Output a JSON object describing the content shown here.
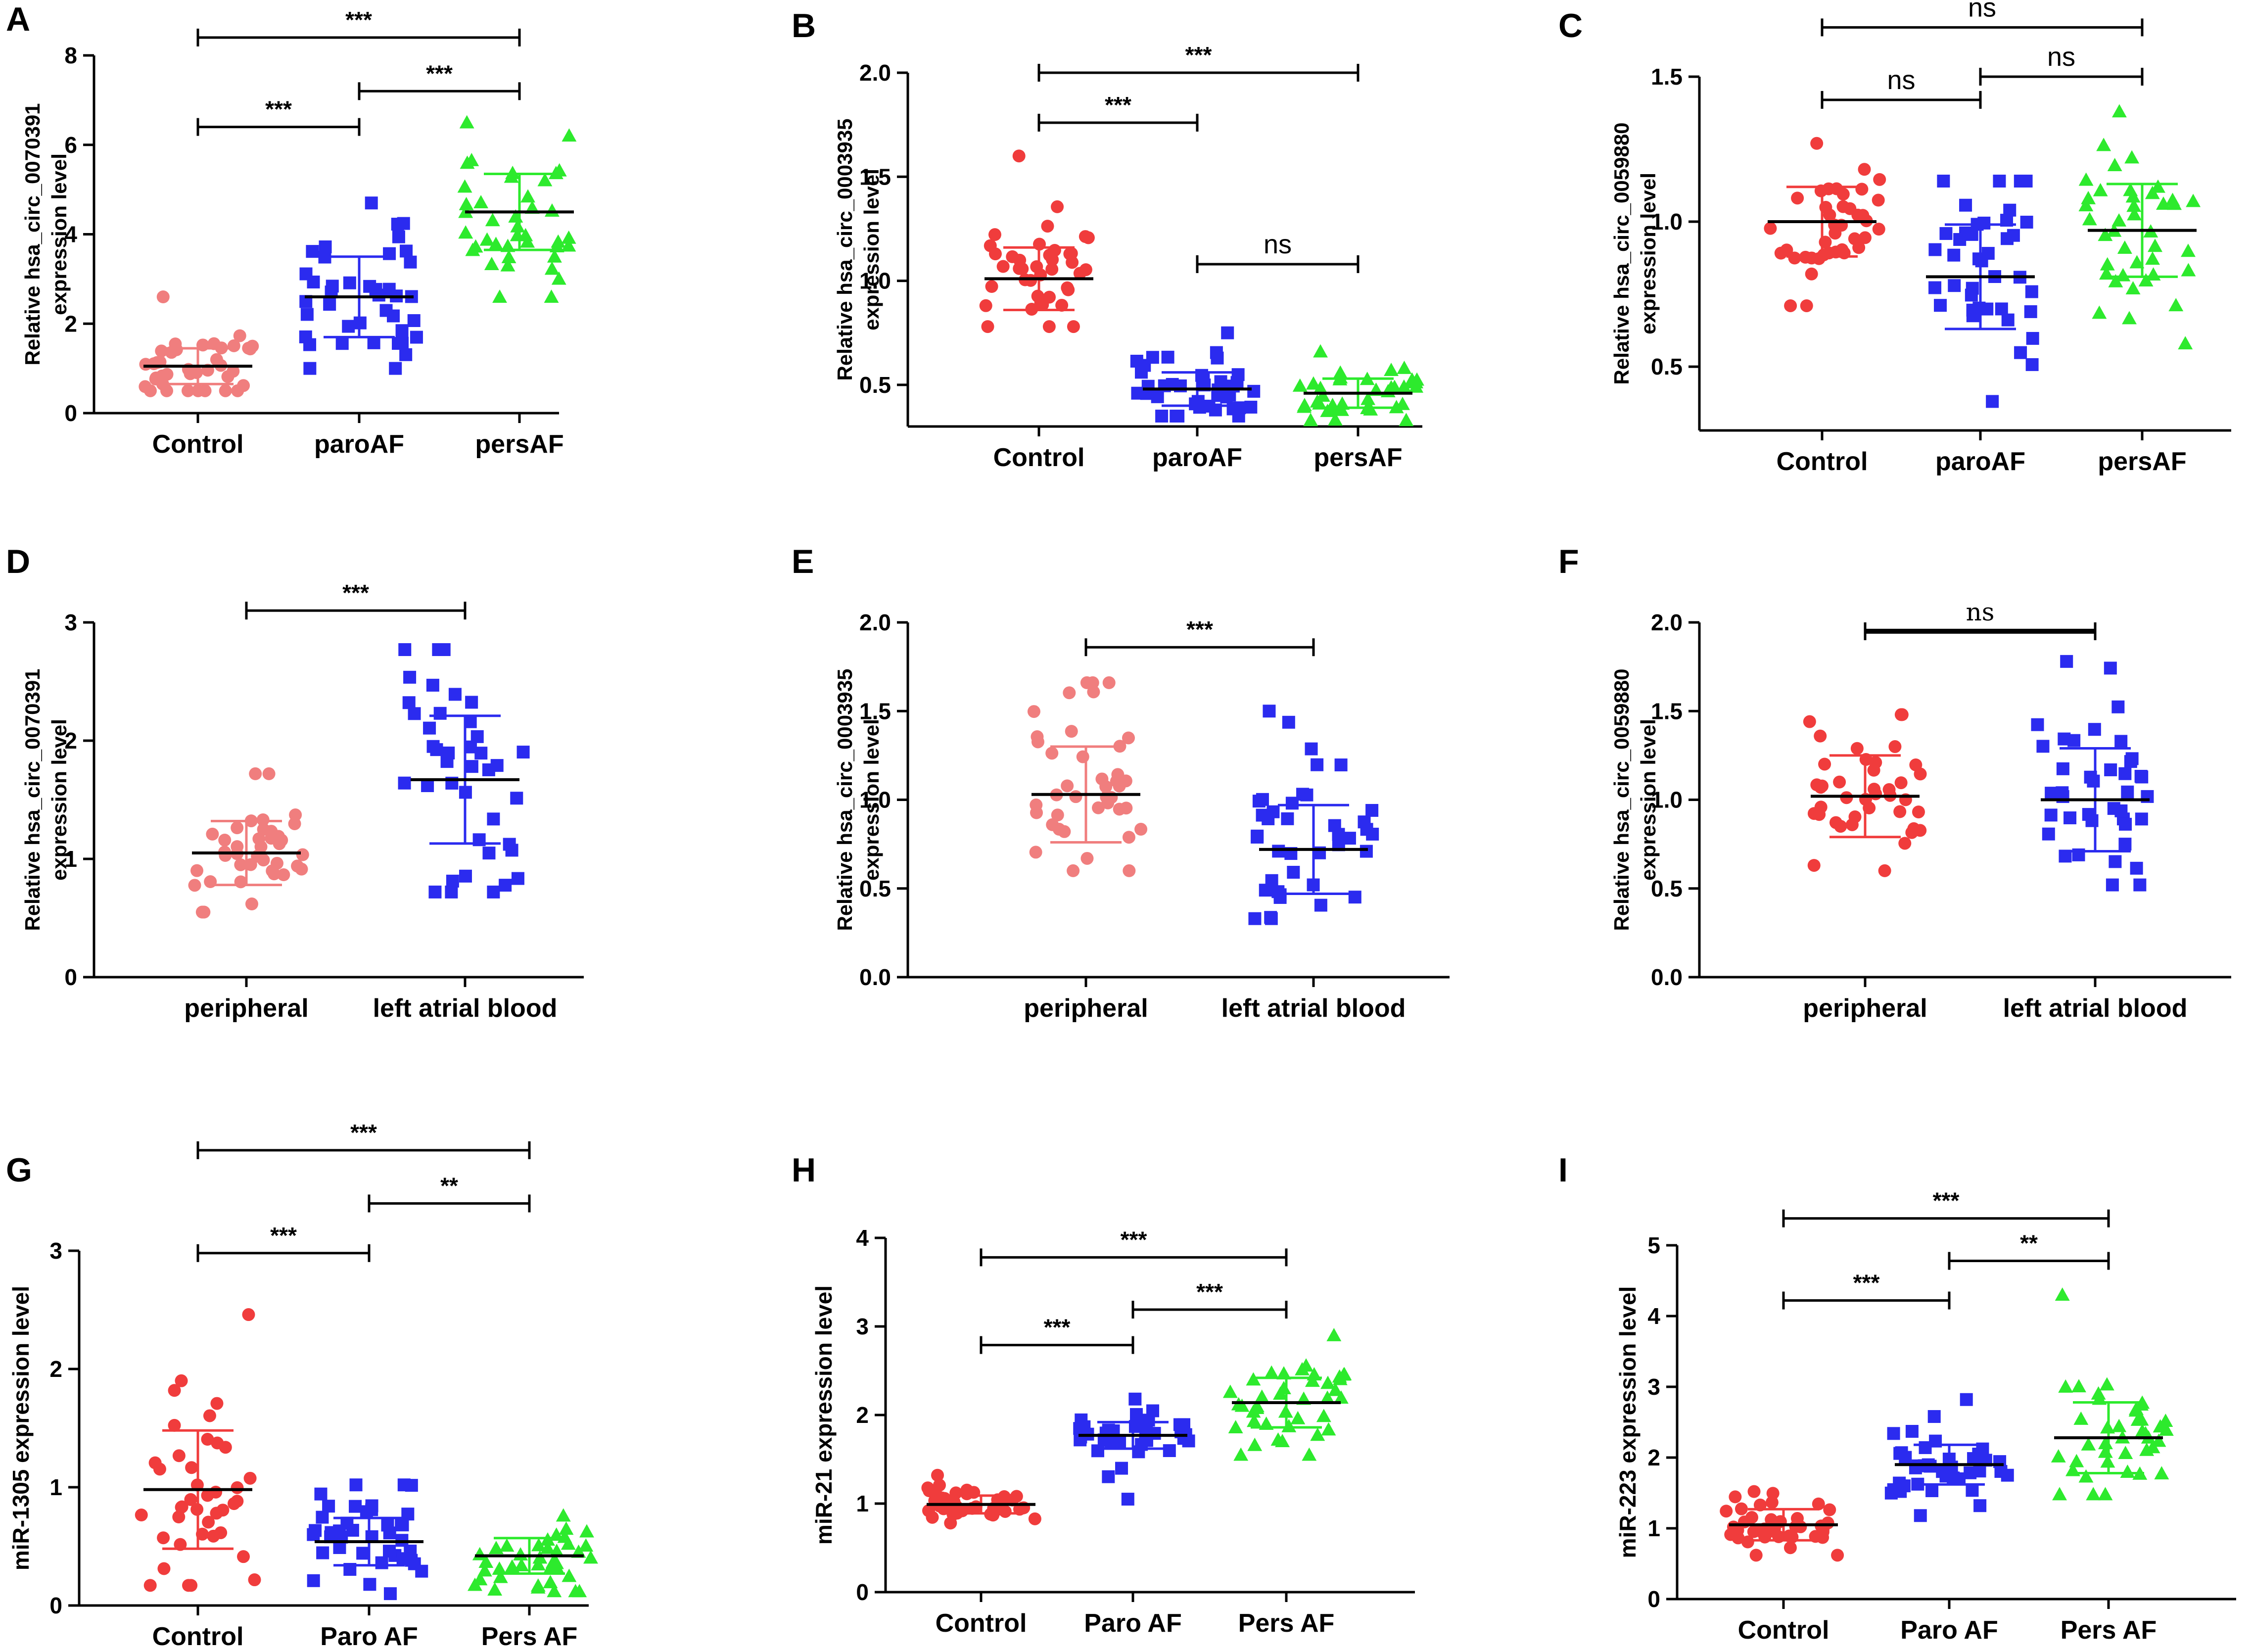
{
  "colors": {
    "red": "#f03c3c",
    "salmon": "#f07e7e",
    "blue": "#2b2bef",
    "green": "#2dea2d",
    "axis": "#000000",
    "mean": "#000000"
  },
  "chart_data": [
    {
      "panel": "A",
      "type": "scatter",
      "ylabel": [
        "Relative hsa_circ_0070391",
        "expression level"
      ],
      "ylim": [
        0,
        8
      ],
      "yticks": [
        "0",
        "2",
        "4",
        "6",
        "8"
      ],
      "categories": [
        "Control",
        "paroAF",
        "persAF"
      ],
      "series": [
        {
          "name": "Control",
          "color": "salmon",
          "shape": "circle",
          "mean": 1.05,
          "sd": 0.4,
          "n": 40,
          "range": [
            0.5,
            2.6
          ]
        },
        {
          "name": "paroAF",
          "color": "blue",
          "shape": "square",
          "mean": 2.6,
          "sd": 0.9,
          "n": 40,
          "range": [
            1.0,
            4.7
          ]
        },
        {
          "name": "persAF",
          "color": "green",
          "shape": "triangle",
          "mean": 4.5,
          "sd": 0.85,
          "n": 40,
          "range": [
            2.6,
            6.5
          ]
        }
      ],
      "comparisons": [
        {
          "from": 0,
          "to": 1,
          "y": 6.4,
          "label": "***"
        },
        {
          "from": 1,
          "to": 2,
          "y": 7.2,
          "label": "***"
        },
        {
          "from": 0,
          "to": 2,
          "y": 8.4,
          "label": "***"
        }
      ]
    },
    {
      "panel": "B",
      "type": "scatter",
      "ylabel": [
        "Relative hsa_circ_0003935",
        "expression level"
      ],
      "ylim": [
        0.3,
        2.0
      ],
      "yticks": [
        "0.5",
        "1.0",
        "1.5",
        "2.0"
      ],
      "categories": [
        "Control",
        "paroAF",
        "persAF"
      ],
      "series": [
        {
          "name": "Control",
          "color": "red",
          "shape": "circle",
          "mean": 1.01,
          "sd": 0.15,
          "n": 40,
          "range": [
            0.78,
            1.6
          ]
        },
        {
          "name": "paroAF",
          "color": "blue",
          "shape": "square",
          "mean": 0.48,
          "sd": 0.08,
          "n": 40,
          "range": [
            0.35,
            0.75
          ]
        },
        {
          "name": "persAF",
          "color": "green",
          "shape": "triangle",
          "mean": 0.46,
          "sd": 0.07,
          "n": 40,
          "range": [
            0.33,
            0.66
          ]
        }
      ],
      "comparisons": [
        {
          "from": 1,
          "to": 2,
          "y": 1.08,
          "label": "ns"
        },
        {
          "from": 0,
          "to": 1,
          "y": 1.76,
          "label": "***"
        },
        {
          "from": 0,
          "to": 2,
          "y": 2.0,
          "label": "***"
        }
      ]
    },
    {
      "panel": "C",
      "type": "scatter",
      "ylabel": [
        "Relative hsa_circ_0059880",
        "expression level"
      ],
      "ylim": [
        0.28,
        1.5
      ],
      "yticks": [
        "0.5",
        "1.0",
        "1.5"
      ],
      "categories": [
        "Control",
        "paroAF",
        "persAF"
      ],
      "series": [
        {
          "name": "Control",
          "color": "red",
          "shape": "circle",
          "mean": 1.0,
          "sd": 0.12,
          "n": 40,
          "range": [
            0.71,
            1.27
          ]
        },
        {
          "name": "paroAF",
          "color": "blue",
          "shape": "square",
          "mean": 0.81,
          "sd": 0.18,
          "n": 40,
          "range": [
            0.38,
            1.14
          ]
        },
        {
          "name": "persAF",
          "color": "green",
          "shape": "triangle",
          "mean": 0.97,
          "sd": 0.16,
          "n": 40,
          "range": [
            0.58,
            1.38
          ]
        }
      ],
      "comparisons": [
        {
          "from": 0,
          "to": 1,
          "y": 1.42,
          "label": "ns"
        },
        {
          "from": 1,
          "to": 2,
          "y": 1.5,
          "label": "ns"
        },
        {
          "from": 0,
          "to": 2,
          "y": 1.67,
          "label": "ns"
        }
      ]
    },
    {
      "panel": "D",
      "type": "scatter",
      "ylabel": [
        "Relative hsa_circ_0070391",
        "expression level"
      ],
      "ylim": [
        0,
        3
      ],
      "yticks": [
        "0",
        "1",
        "2",
        "3"
      ],
      "categories": [
        "peripheral",
        "left atrial blood"
      ],
      "series": [
        {
          "name": "peripheral",
          "color": "salmon",
          "shape": "circle",
          "mean": 1.05,
          "sd": 0.27,
          "n": 40,
          "range": [
            0.55,
            1.72
          ]
        },
        {
          "name": "left atrial blood",
          "color": "blue",
          "shape": "square",
          "mean": 1.67,
          "sd": 0.54,
          "n": 40,
          "range": [
            0.72,
            2.77
          ]
        }
      ],
      "comparisons": [
        {
          "from": 0,
          "to": 1,
          "y": 3.1,
          "label": "***"
        }
      ]
    },
    {
      "panel": "E",
      "type": "scatter",
      "ylabel": [
        "Relative hsa_circ_0003935",
        "expression level"
      ],
      "ylim": [
        0,
        2.0
      ],
      "yticks": [
        "0.0",
        "0.5",
        "1.0",
        "1.5",
        "2.0"
      ],
      "categories": [
        "peripheral",
        "left atrial blood"
      ],
      "series": [
        {
          "name": "peripheral",
          "color": "salmon",
          "shape": "circle",
          "mean": 1.03,
          "sd": 0.27,
          "n": 40,
          "range": [
            0.6,
            1.66
          ]
        },
        {
          "name": "left atrial blood",
          "color": "blue",
          "shape": "square",
          "mean": 0.72,
          "sd": 0.25,
          "n": 40,
          "range": [
            0.33,
            1.5
          ]
        }
      ],
      "comparisons": [
        {
          "from": 0,
          "to": 1,
          "y": 1.86,
          "label": "***"
        }
      ]
    },
    {
      "panel": "F",
      "type": "scatter",
      "ylabel": [
        "Relative hsa_circ_0059880",
        "expression level"
      ],
      "ylim": [
        0,
        2.0
      ],
      "yticks": [
        "0.0",
        "0.5",
        "1.0",
        "1.5",
        "2.0"
      ],
      "categories": [
        "peripheral",
        "left atrial blood"
      ],
      "series": [
        {
          "name": "peripheral",
          "color": "red",
          "shape": "circle",
          "mean": 1.02,
          "sd": 0.23,
          "n": 40,
          "range": [
            0.6,
            1.48
          ]
        },
        {
          "name": "left atrial blood",
          "color": "blue",
          "shape": "square",
          "mean": 1.0,
          "sd": 0.29,
          "n": 40,
          "range": [
            0.52,
            1.78
          ]
        }
      ],
      "comparisons": [
        {
          "from": 0,
          "to": 1,
          "y": 1.95,
          "label": "ns",
          "style": "thick"
        }
      ]
    },
    {
      "panel": "G",
      "type": "scatter",
      "ylabel": [
        "miR-1305 expression level"
      ],
      "ylim": [
        0,
        3
      ],
      "yticks": [
        "0",
        "1",
        "2",
        "3"
      ],
      "categories": [
        "Control",
        "Paro AF",
        "Pers AF"
      ],
      "series": [
        {
          "name": "Control",
          "color": "red",
          "shape": "circle",
          "mean": 0.98,
          "sd": 0.5,
          "n": 40,
          "range": [
            0.17,
            2.46
          ]
        },
        {
          "name": "Paro AF",
          "color": "blue",
          "shape": "square",
          "mean": 0.54,
          "sd": 0.2,
          "n": 40,
          "range": [
            0.1,
            1.02
          ]
        },
        {
          "name": "Pers AF",
          "color": "green",
          "shape": "triangle",
          "mean": 0.42,
          "sd": 0.15,
          "n": 40,
          "range": [
            0.12,
            0.76
          ]
        }
      ],
      "comparisons": [
        {
          "from": 0,
          "to": 1,
          "y": 2.98,
          "label": "***"
        },
        {
          "from": 1,
          "to": 2,
          "y": 3.4,
          "label": "**"
        },
        {
          "from": 0,
          "to": 2,
          "y": 3.85,
          "label": "***"
        }
      ]
    },
    {
      "panel": "H",
      "type": "scatter",
      "ylabel": [
        "miR-21 expression level"
      ],
      "ylim": [
        0,
        4
      ],
      "yticks": [
        "0",
        "1",
        "2",
        "3",
        "4"
      ],
      "categories": [
        "Control",
        "Paro AF",
        "Pers AF"
      ],
      "series": [
        {
          "name": "Control",
          "color": "red",
          "shape": "circle",
          "mean": 0.99,
          "sd": 0.1,
          "n": 40,
          "range": [
            0.78,
            1.32
          ]
        },
        {
          "name": "Paro AF",
          "color": "blue",
          "shape": "square",
          "mean": 1.77,
          "sd": 0.15,
          "n": 40,
          "range": [
            1.05,
            2.18
          ]
        },
        {
          "name": "Pers AF",
          "color": "green",
          "shape": "triangle",
          "mean": 2.14,
          "sd": 0.28,
          "n": 40,
          "range": [
            1.55,
            2.9
          ]
        }
      ],
      "comparisons": [
        {
          "from": 0,
          "to": 1,
          "y": 2.79,
          "label": "***"
        },
        {
          "from": 1,
          "to": 2,
          "y": 3.19,
          "label": "***"
        },
        {
          "from": 0,
          "to": 2,
          "y": 3.78,
          "label": "***"
        }
      ]
    },
    {
      "panel": "I",
      "type": "scatter",
      "ylabel": [
        "miR-223 expression level"
      ],
      "ylim": [
        0,
        5
      ],
      "yticks": [
        "0",
        "1",
        "2",
        "3",
        "4",
        "5"
      ],
      "categories": [
        "Control",
        "Paro AF",
        "Pers AF"
      ],
      "series": [
        {
          "name": "Control",
          "color": "red",
          "shape": "circle",
          "mean": 1.05,
          "sd": 0.22,
          "n": 40,
          "range": [
            0.62,
            1.52
          ]
        },
        {
          "name": "Paro AF",
          "color": "blue",
          "shape": "square",
          "mean": 1.9,
          "sd": 0.28,
          "n": 40,
          "range": [
            1.18,
            2.82
          ]
        },
        {
          "name": "Pers AF",
          "color": "green",
          "shape": "triangle",
          "mean": 2.28,
          "sd": 0.5,
          "n": 40,
          "range": [
            1.48,
            4.3
          ]
        }
      ],
      "comparisons": [
        {
          "from": 0,
          "to": 1,
          "y": 4.22,
          "label": "***"
        },
        {
          "from": 1,
          "to": 2,
          "y": 4.78,
          "label": "**"
        },
        {
          "from": 0,
          "to": 2,
          "y": 5.38,
          "label": "***"
        }
      ]
    }
  ]
}
